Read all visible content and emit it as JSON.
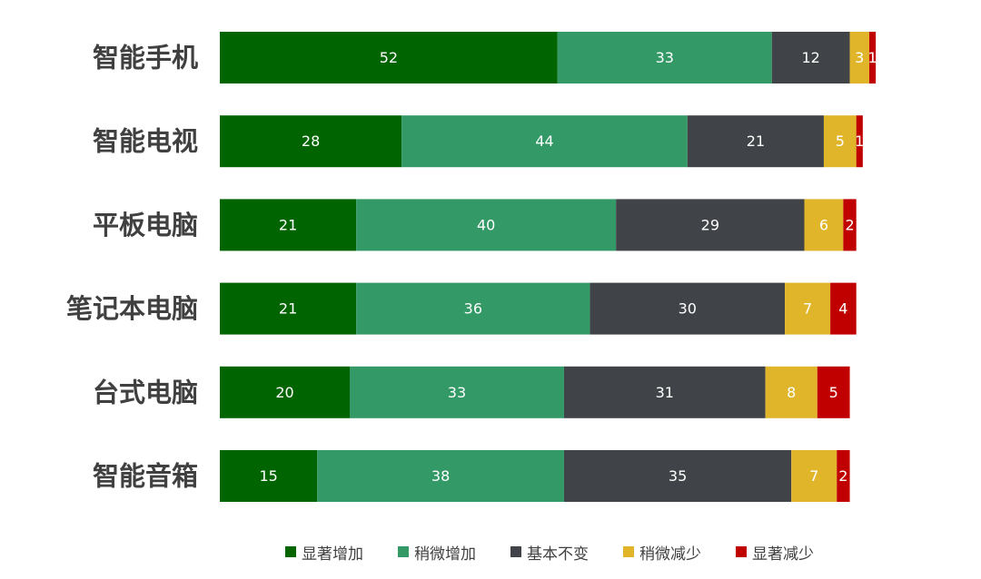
{
  "chart_data": {
    "type": "bar",
    "orientation": "horizontal",
    "stacked": true,
    "title": "",
    "xlabel": "",
    "ylabel": "",
    "xlim": [
      0,
      100
    ],
    "grid": false,
    "legend_position": "bottom",
    "categories": [
      "智能手机",
      "智能电视",
      "平板电脑",
      "笔记本电脑",
      "台式电脑",
      "智能音箱"
    ],
    "series": [
      {
        "name": "显著增加",
        "color": "#006400",
        "values": [
          52,
          28,
          21,
          21,
          20,
          15
        ]
      },
      {
        "name": "稍微增加",
        "color": "#339966",
        "values": [
          33,
          44,
          40,
          36,
          33,
          38
        ]
      },
      {
        "name": "基本不变",
        "color": "#404347",
        "values": [
          12,
          21,
          29,
          30,
          31,
          35
        ]
      },
      {
        "name": "稍微减少",
        "color": "#E0B52A",
        "values": [
          3,
          5,
          6,
          7,
          8,
          7
        ]
      },
      {
        "name": "显著减少",
        "color": "#C00000",
        "values": [
          1,
          1,
          2,
          4,
          5,
          2
        ]
      }
    ]
  }
}
